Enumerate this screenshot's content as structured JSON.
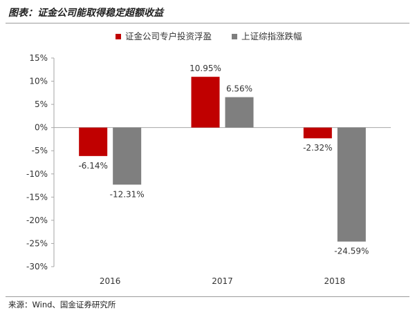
{
  "title": "图表：证金公司能取得稳定超额收益",
  "source": "来源：Wind、国金证券研究所",
  "chart_data": {
    "type": "bar",
    "categories": [
      "2016",
      "2017",
      "2018"
    ],
    "series": [
      {
        "name": "证金公司专户投资浮盈",
        "color": "#c00000",
        "values": [
          -6.14,
          10.95,
          -2.32
        ],
        "labels": [
          "-6.14%",
          "10.95%",
          "-2.32%"
        ]
      },
      {
        "name": "上证综指涨跌幅",
        "color": "#7f7f7f",
        "values": [
          -12.31,
          6.56,
          -24.59
        ],
        "labels": [
          "-12.31%",
          "6.56%",
          "-24.59%"
        ]
      }
    ],
    "ylim": [
      -30,
      15
    ],
    "yticks": [
      15,
      10,
      5,
      0,
      -5,
      -10,
      -15,
      -20,
      -25,
      -30
    ],
    "ytick_labels": [
      "15%",
      "10%",
      "5%",
      "0%",
      "-5%",
      "-10%",
      "-15%",
      "-20%",
      "-25%",
      "-30%"
    ],
    "legend_position": "top-center",
    "grid": false
  }
}
